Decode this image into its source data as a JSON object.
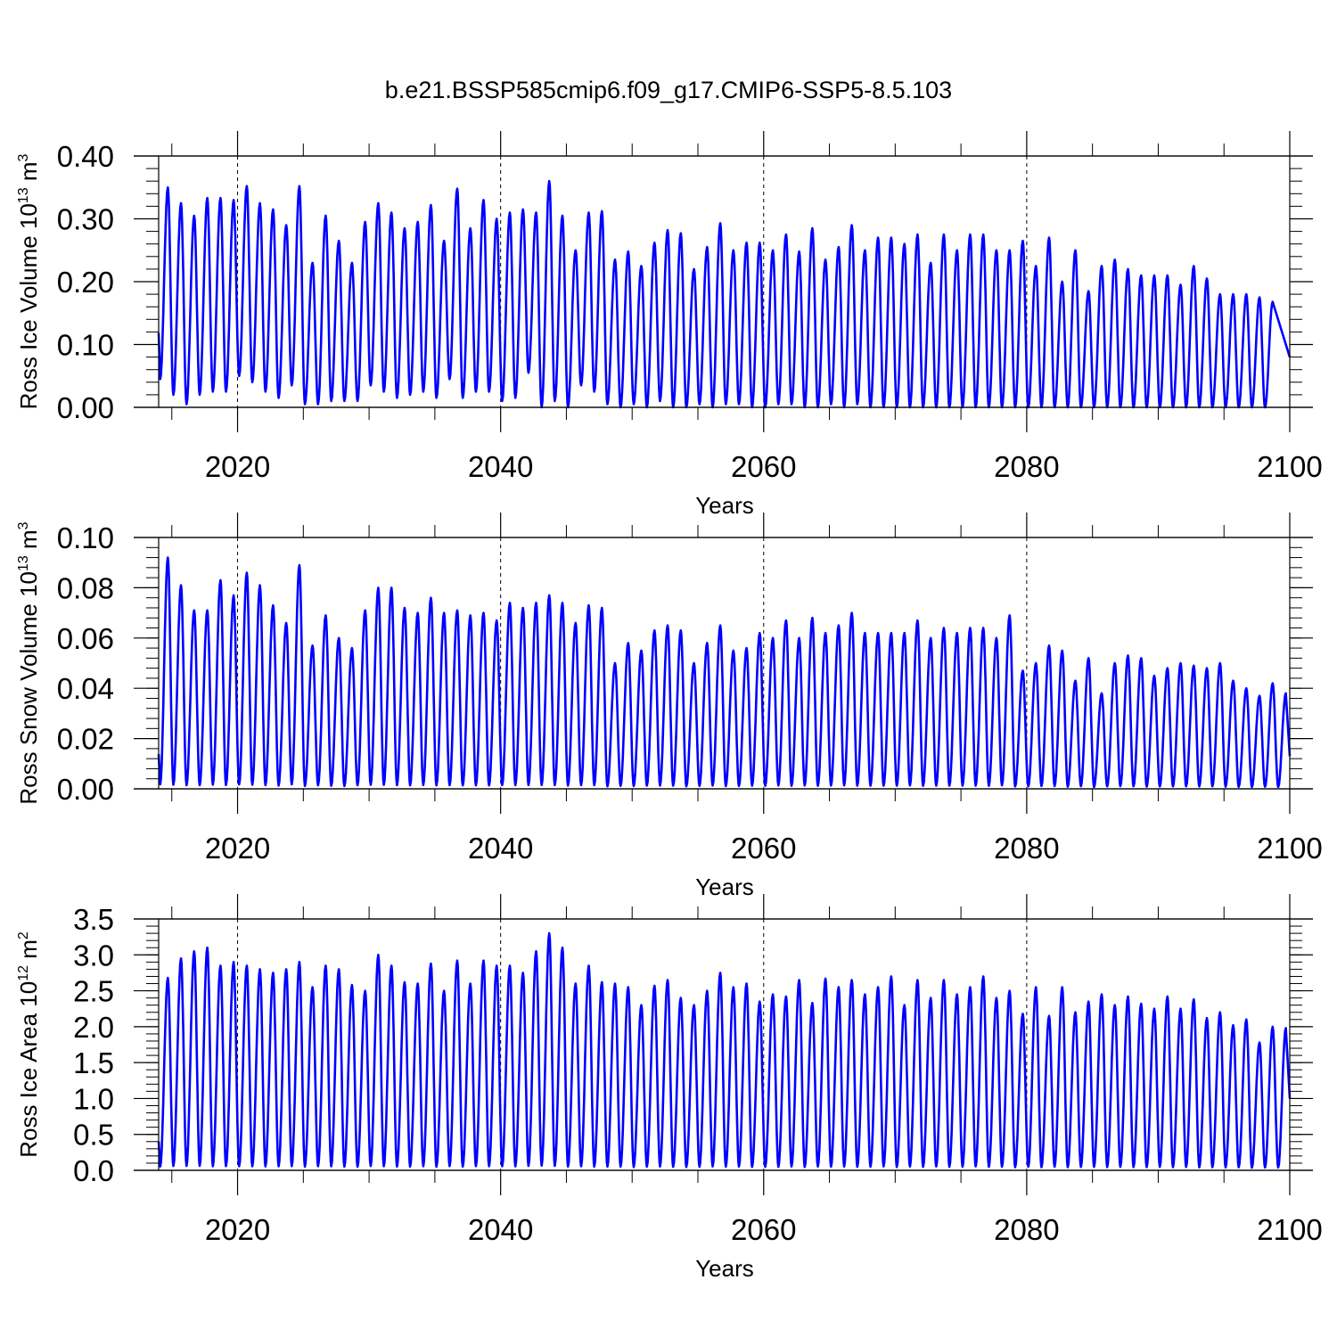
{
  "figure": {
    "title": "b.e21.BSSP585cmip6.f09_g17.CMIP6-SSP5-8.5.103"
  },
  "colors": {
    "series": "#0000ff",
    "axes": "#000000",
    "grid": "#000000"
  },
  "chart_data": [
    {
      "type": "line",
      "name": "ice-volume",
      "ylabel": "Ross Ice Volume 10",
      "ylabel_sup": "13",
      "ylabel_unit": " m",
      "ylabel_unit_sup": "3",
      "xlabel": "Years",
      "xlim": [
        2014,
        2100
      ],
      "ylim": [
        0,
        0.4
      ],
      "x_ticks": [
        2020,
        2040,
        2060,
        2080,
        2100
      ],
      "y_ticks": [
        0.0,
        0.1,
        0.2,
        0.3,
        0.4
      ],
      "y_tick_labels": [
        "0.00",
        "0.10",
        "0.20",
        "0.30",
        "0.40"
      ],
      "grid": "dashed vertical at major x ticks",
      "series": [
        {
          "first_year": 2014,
          "min_month_offset": 0.12,
          "max_month_offset": 0.7,
          "end_value": 0.08,
          "annual_max": [
            0.35,
            0.325,
            0.305,
            0.333,
            0.333,
            0.33,
            0.352,
            0.325,
            0.315,
            0.29,
            0.352,
            0.23,
            0.305,
            0.265,
            0.23,
            0.295,
            0.325,
            0.31,
            0.285,
            0.295,
            0.322,
            0.265,
            0.348,
            0.285,
            0.33,
            0.3,
            0.31,
            0.315,
            0.31,
            0.36,
            0.305,
            0.25,
            0.31,
            0.312,
            0.235,
            0.248,
            0.225,
            0.262,
            0.282,
            0.277,
            0.22,
            0.255,
            0.293,
            0.25,
            0.262,
            0.262,
            0.25,
            0.275,
            0.248,
            0.285,
            0.235,
            0.255,
            0.29,
            0.25,
            0.27,
            0.27,
            0.26,
            0.275,
            0.23,
            0.275,
            0.25,
            0.275,
            0.275,
            0.25,
            0.25,
            0.265,
            0.225,
            0.27,
            0.2,
            0.25,
            0.185,
            0.225,
            0.235,
            0.22,
            0.21,
            0.21,
            0.21,
            0.195,
            0.225,
            0.205,
            0.18,
            0.18,
            0.18,
            0.175,
            0.168
          ],
          "annual_min": [
            0.045,
            0.02,
            0.005,
            0.02,
            0.025,
            0.025,
            0.05,
            0.04,
            0.025,
            0.015,
            0.035,
            0.005,
            0.005,
            0.01,
            0.01,
            0.01,
            0.035,
            0.025,
            0.015,
            0.02,
            0.025,
            0.015,
            0.045,
            0.015,
            0.025,
            0.025,
            0.01,
            0.015,
            0.055,
            0.0,
            0.01,
            0.0,
            0.035,
            0.025,
            0.005,
            0.0,
            0.005,
            0.0,
            0.01,
            0.0,
            0.0,
            0.005,
            0.0,
            0.005,
            0.005,
            0.0,
            0.0,
            0.005,
            0.005,
            0.0,
            0.0,
            0.005,
            0.0,
            0.005,
            0.0,
            0.0,
            0.0,
            0.0,
            0.0,
            0.0,
            0.0,
            0.0,
            0.0,
            0.0,
            0.0,
            0.0,
            0.0,
            0.0,
            0.0,
            0.0,
            0.0,
            0.0,
            0.0,
            0.0,
            0.0,
            0.0,
            0.0,
            0.0,
            0.0,
            0.0,
            0.0,
            0.0,
            0.0,
            0.0,
            0.0,
            0.0
          ]
        }
      ]
    },
    {
      "type": "line",
      "name": "snow-volume",
      "ylabel": "Ross Snow Volume 10",
      "ylabel_sup": "13",
      "ylabel_unit": " m",
      "ylabel_unit_sup": "3",
      "xlabel": "Years",
      "xlim": [
        2014,
        2100
      ],
      "ylim": [
        0,
        0.1
      ],
      "x_ticks": [
        2020,
        2040,
        2060,
        2080,
        2100
      ],
      "y_ticks": [
        0.0,
        0.02,
        0.04,
        0.06,
        0.08,
        0.1
      ],
      "y_tick_labels": [
        "0.00",
        "0.02",
        "0.04",
        "0.06",
        "0.08",
        "0.10"
      ],
      "grid": "dashed vertical at major x ticks",
      "series": [
        {
          "first_year": 2014,
          "min_month_offset": 0.12,
          "max_month_offset": 0.7,
          "end_value": 0.013,
          "annual_max": [
            0.092,
            0.081,
            0.071,
            0.071,
            0.083,
            0.077,
            0.086,
            0.081,
            0.073,
            0.066,
            0.089,
            0.057,
            0.069,
            0.06,
            0.056,
            0.071,
            0.08,
            0.08,
            0.072,
            0.07,
            0.076,
            0.07,
            0.071,
            0.069,
            0.07,
            0.067,
            0.074,
            0.072,
            0.074,
            0.077,
            0.074,
            0.066,
            0.073,
            0.072,
            0.05,
            0.058,
            0.055,
            0.063,
            0.065,
            0.063,
            0.05,
            0.058,
            0.065,
            0.055,
            0.056,
            0.062,
            0.06,
            0.067,
            0.06,
            0.068,
            0.062,
            0.065,
            0.07,
            0.062,
            0.062,
            0.062,
            0.062,
            0.067,
            0.06,
            0.064,
            0.062,
            0.064,
            0.064,
            0.06,
            0.069,
            0.047,
            0.05,
            0.057,
            0.055,
            0.043,
            0.052,
            0.038,
            0.05,
            0.053,
            0.052,
            0.045,
            0.048,
            0.05,
            0.049,
            0.048,
            0.05,
            0.043,
            0.04,
            0.037,
            0.042,
            0.038
          ]
        }
      ]
    },
    {
      "type": "line",
      "name": "ice-area",
      "ylabel": "Ross Ice Area 10",
      "ylabel_sup": "12",
      "ylabel_unit": " m",
      "ylabel_unit_sup": "2",
      "xlabel": "Years",
      "xlim": [
        2014,
        2100
      ],
      "ylim": [
        0,
        3.5
      ],
      "x_ticks": [
        2020,
        2040,
        2060,
        2080,
        2100
      ],
      "y_ticks": [
        0.0,
        0.5,
        1.0,
        1.5,
        2.0,
        2.5,
        3.0,
        3.5
      ],
      "y_tick_labels": [
        "0.0",
        "0.5",
        "1.0",
        "1.5",
        "2.0",
        "2.5",
        "3.0",
        "3.5"
      ],
      "grid": "dashed vertical at major x ticks",
      "series": [
        {
          "first_year": 2014,
          "min_month_offset": 0.12,
          "max_month_offset": 0.7,
          "end_value": 1.0,
          "annual_max": [
            2.68,
            2.95,
            3.05,
            3.1,
            2.85,
            2.9,
            2.85,
            2.8,
            2.75,
            2.8,
            2.9,
            2.55,
            2.85,
            2.8,
            2.58,
            2.5,
            3.0,
            2.85,
            2.62,
            2.6,
            2.88,
            2.5,
            2.92,
            2.6,
            2.92,
            2.85,
            2.85,
            2.75,
            3.05,
            3.3,
            3.1,
            2.6,
            2.85,
            2.62,
            2.6,
            2.55,
            2.3,
            2.57,
            2.65,
            2.4,
            2.3,
            2.5,
            2.75,
            2.55,
            2.6,
            2.35,
            2.45,
            2.42,
            2.65,
            2.33,
            2.67,
            2.55,
            2.65,
            2.45,
            2.55,
            2.7,
            2.3,
            2.65,
            2.4,
            2.65,
            2.45,
            2.55,
            2.7,
            2.4,
            2.5,
            2.18,
            2.55,
            2.15,
            2.55,
            2.2,
            2.35,
            2.45,
            2.3,
            2.42,
            2.32,
            2.25,
            2.42,
            2.25,
            2.38,
            2.12,
            2.2,
            2.02,
            2.1,
            1.78,
            2.0,
            1.98
          ]
        }
      ]
    }
  ]
}
